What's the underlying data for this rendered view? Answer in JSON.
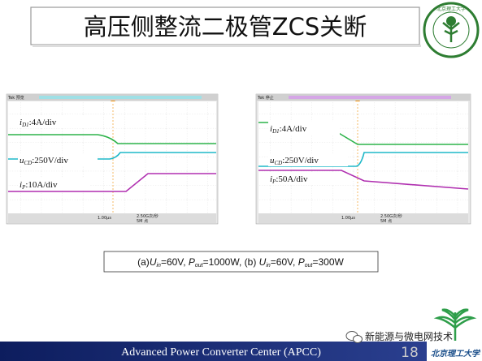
{
  "header": {
    "title": "高压侧整流二极管ZCS关断"
  },
  "logo": {
    "top_name": "北京理工大学",
    "bottom_name": "北京理工大学"
  },
  "scopes": [
    {
      "header": "Tek 预览",
      "labels": [
        [
          "i",
          "D1",
          ":4A/div"
        ],
        [
          "u",
          "CD",
          ":250V/div"
        ],
        [
          "i",
          "P",
          ":10A/div"
        ]
      ],
      "status": [
        "1.00μs",
        "2.50G次/秒",
        "5M 点"
      ]
    },
    {
      "header": "Tek 停止",
      "labels": [
        [
          "i",
          "D1",
          ":4A/div"
        ],
        [
          "u",
          "CD",
          ":250V/div"
        ],
        [
          "i",
          "P",
          ":50A/div"
        ]
      ],
      "status": [
        "1.00μs",
        "2.50G次/秒",
        "5M 点"
      ]
    }
  ],
  "caption": [
    "(a)",
    "U",
    "in",
    "=60V, ",
    "P",
    "out",
    "=1000W, (b) ",
    "U",
    "in",
    "=60V, ",
    "P",
    "out",
    "=300W"
  ],
  "footer": {
    "text": "Advanced Power Converter Center (APCC)",
    "page": "18",
    "watermark": "新能源与微电网技术"
  }
}
